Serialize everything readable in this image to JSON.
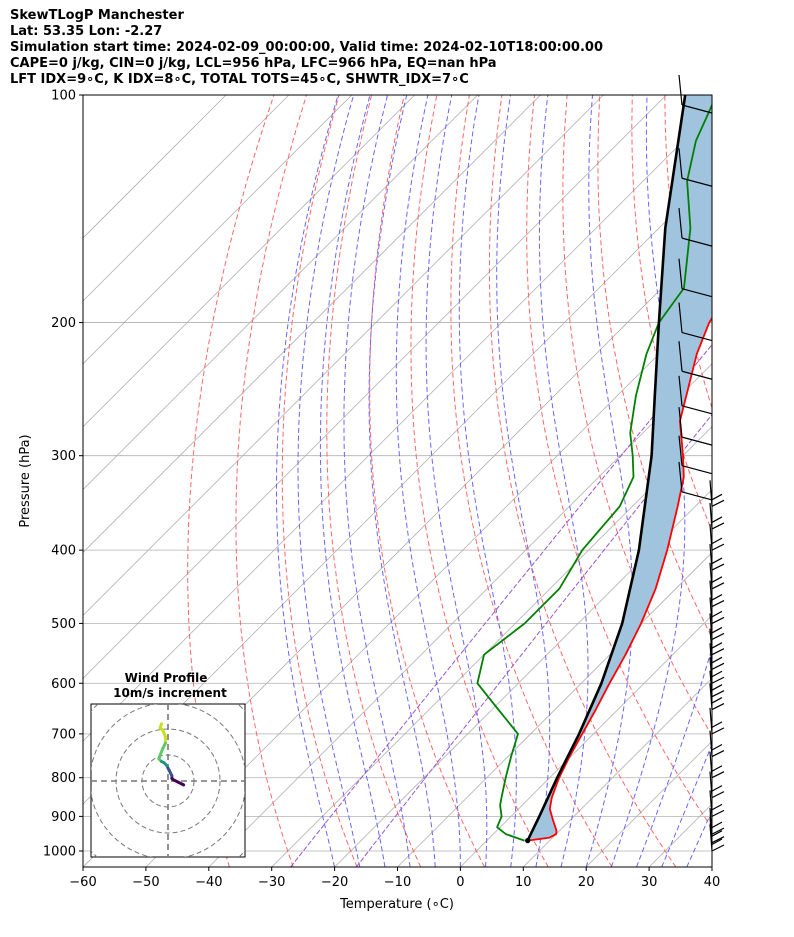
{
  "title_lines": [
    "SkewTLogP Manchester",
    "Lat: 53.35   Lon: -2.27",
    "Simulation start time: 2024-02-09_00:00:00, Valid time: 2024-02-10T18:00:00.00",
    "CAPE=0 j/kg, CIN=0 j/kg, LCL=956 hPa, LFC=966 hPa, EQ=nan hPa",
    "LFT IDX=9∘C, K IDX=8∘C, TOTAL TOTS=45∘C, SHWTR_IDX=7∘C"
  ],
  "colors": {
    "temperature": "#ff0000",
    "dewpoint": "#008000",
    "parcel": "#000000",
    "cape_fill": "#a0c4de",
    "dry_adiabat": "#ff6666",
    "moist_adiabat": "#6666ff",
    "mixing_ratio": "#9955cc",
    "isotherm": "#b0b0b0"
  },
  "chart_data": [
    {
      "type": "line",
      "subtype": "skew-t log-p",
      "xlabel": "Temperature (∘C)",
      "ylabel": "Pressure (hPa)",
      "xlim": [
        -60,
        40
      ],
      "ylim": [
        1050,
        100
      ],
      "skew_degC_per_log_unit": 1.0,
      "x_ticks": [
        -60,
        -50,
        -40,
        -30,
        -20,
        -10,
        0,
        10,
        20,
        30,
        40
      ],
      "x_tick_labels": [
        "−60",
        "−50",
        "−40",
        "−30",
        "−20",
        "−10",
        "0",
        "10",
        "20",
        "30",
        "40"
      ],
      "y_ticks": [
        1000,
        900,
        800,
        700,
        600,
        500,
        400,
        300,
        200,
        100
      ],
      "y_tick_labels": [
        "1000",
        "900",
        "800",
        "700",
        "600",
        "500",
        "400",
        "300",
        "200",
        "100"
      ],
      "grid": true,
      "series": [
        {
          "name": "Temperature",
          "color": "#ff0000",
          "points": [
            [
              969,
              6.5
            ],
            [
              960,
              9.5
            ],
            [
              950,
              10.0
            ],
            [
              940,
              9.5
            ],
            [
              920,
              8.0
            ],
            [
              900,
              6.5
            ],
            [
              880,
              5.0
            ],
            [
              850,
              3.5
            ],
            [
              800,
              1.5
            ],
            [
              750,
              -0.2
            ],
            [
              700,
              -1.8
            ],
            [
              650,
              -3.5
            ],
            [
              600,
              -5.5
            ],
            [
              550,
              -7.5
            ],
            [
              500,
              -10
            ],
            [
              450,
              -13.2
            ],
            [
              400,
              -17.5
            ],
            [
              350,
              -22.8
            ],
            [
              320,
              -26.5
            ],
            [
              300,
              -30
            ],
            [
              270,
              -36
            ],
            [
              250,
              -39
            ],
            [
              220,
              -44
            ],
            [
              200,
              -47
            ],
            [
              180,
              -49
            ],
            [
              160,
              -54
            ],
            [
              150,
              -57
            ],
            [
              140,
              -61
            ],
            [
              130,
              -64.5
            ],
            [
              120,
              -68.5
            ],
            [
              110,
              -72.5
            ],
            [
              100,
              -76
            ]
          ]
        },
        {
          "name": "Dewpoint",
          "color": "#008000",
          "points": [
            [
              969,
              6.0
            ],
            [
              950,
              2.0
            ],
            [
              930,
              -0.5
            ],
            [
              900,
              -1.5
            ],
            [
              870,
              -3.5
            ],
            [
              850,
              -4.5
            ],
            [
              800,
              -7.0
            ],
            [
              750,
              -9.5
            ],
            [
              700,
              -12.0
            ],
            [
              650,
              -19.0
            ],
            [
              600,
              -26.5
            ],
            [
              550,
              -30.0
            ],
            [
              500,
              -28.5
            ],
            [
              450,
              -28.5
            ],
            [
              400,
              -31.0
            ],
            [
              350,
              -32.0
            ],
            [
              320,
              -34.5
            ],
            [
              300,
              -38.0
            ],
            [
              280,
              -42.0
            ],
            [
              250,
              -47.0
            ],
            [
              220,
              -52.0
            ],
            [
              200,
              -55.0
            ],
            [
              180,
              -56.5
            ],
            [
              150,
              -65.0
            ],
            [
              130,
              -73.0
            ],
            [
              115,
              -78.0
            ],
            [
              100,
              -82.0
            ]
          ]
        },
        {
          "name": "Parcel",
          "color": "#000000",
          "points": [
            [
              969,
              6.5
            ],
            [
              900,
              4.5
            ],
            [
              800,
              1.2
            ],
            [
              700,
              -2.3
            ],
            [
              600,
              -6.8
            ],
            [
              500,
              -13.0
            ],
            [
              400,
              -22.0
            ],
            [
              300,
              -35.0
            ],
            [
              250,
              -44.0
            ],
            [
              200,
              -55.0
            ],
            [
              150,
              -69.0
            ],
            [
              100,
              -87.0
            ]
          ]
        }
      ],
      "wind_barbs_pressures_hPa": [
        100,
        125,
        150,
        175,
        200,
        225,
        250,
        275,
        300,
        325,
        350,
        375,
        400,
        425,
        450,
        475,
        500,
        525,
        550,
        575,
        600,
        625,
        650,
        700,
        750,
        800,
        850,
        900,
        950,
        975,
        1000
      ],
      "hodograph": {
        "title_line1": "Wind Profile",
        "title_line2": "10m/s increment",
        "ring_increment_ms": 10,
        "rings": 4,
        "trace_uv_ms": [
          [
            6.0,
            -1.5
          ],
          [
            4.0,
            -0.5
          ],
          [
            2.0,
            0.5
          ],
          [
            1.5,
            1.0
          ],
          [
            1.5,
            2.0
          ],
          [
            1.0,
            3.0
          ],
          [
            0.5,
            4.0
          ],
          [
            0.0,
            5.0
          ],
          [
            -0.5,
            6.0
          ],
          [
            -1.5,
            7.0
          ],
          [
            -2.5,
            7.5
          ],
          [
            -3.5,
            8.5
          ],
          [
            -3.0,
            10.0
          ],
          [
            -2.0,
            12.5
          ],
          [
            -1.0,
            14.5
          ],
          [
            -1.0,
            17.0
          ],
          [
            -2.0,
            19.5
          ],
          [
            -3.0,
            20.5
          ],
          [
            -2.5,
            22.0
          ]
        ]
      }
    }
  ]
}
